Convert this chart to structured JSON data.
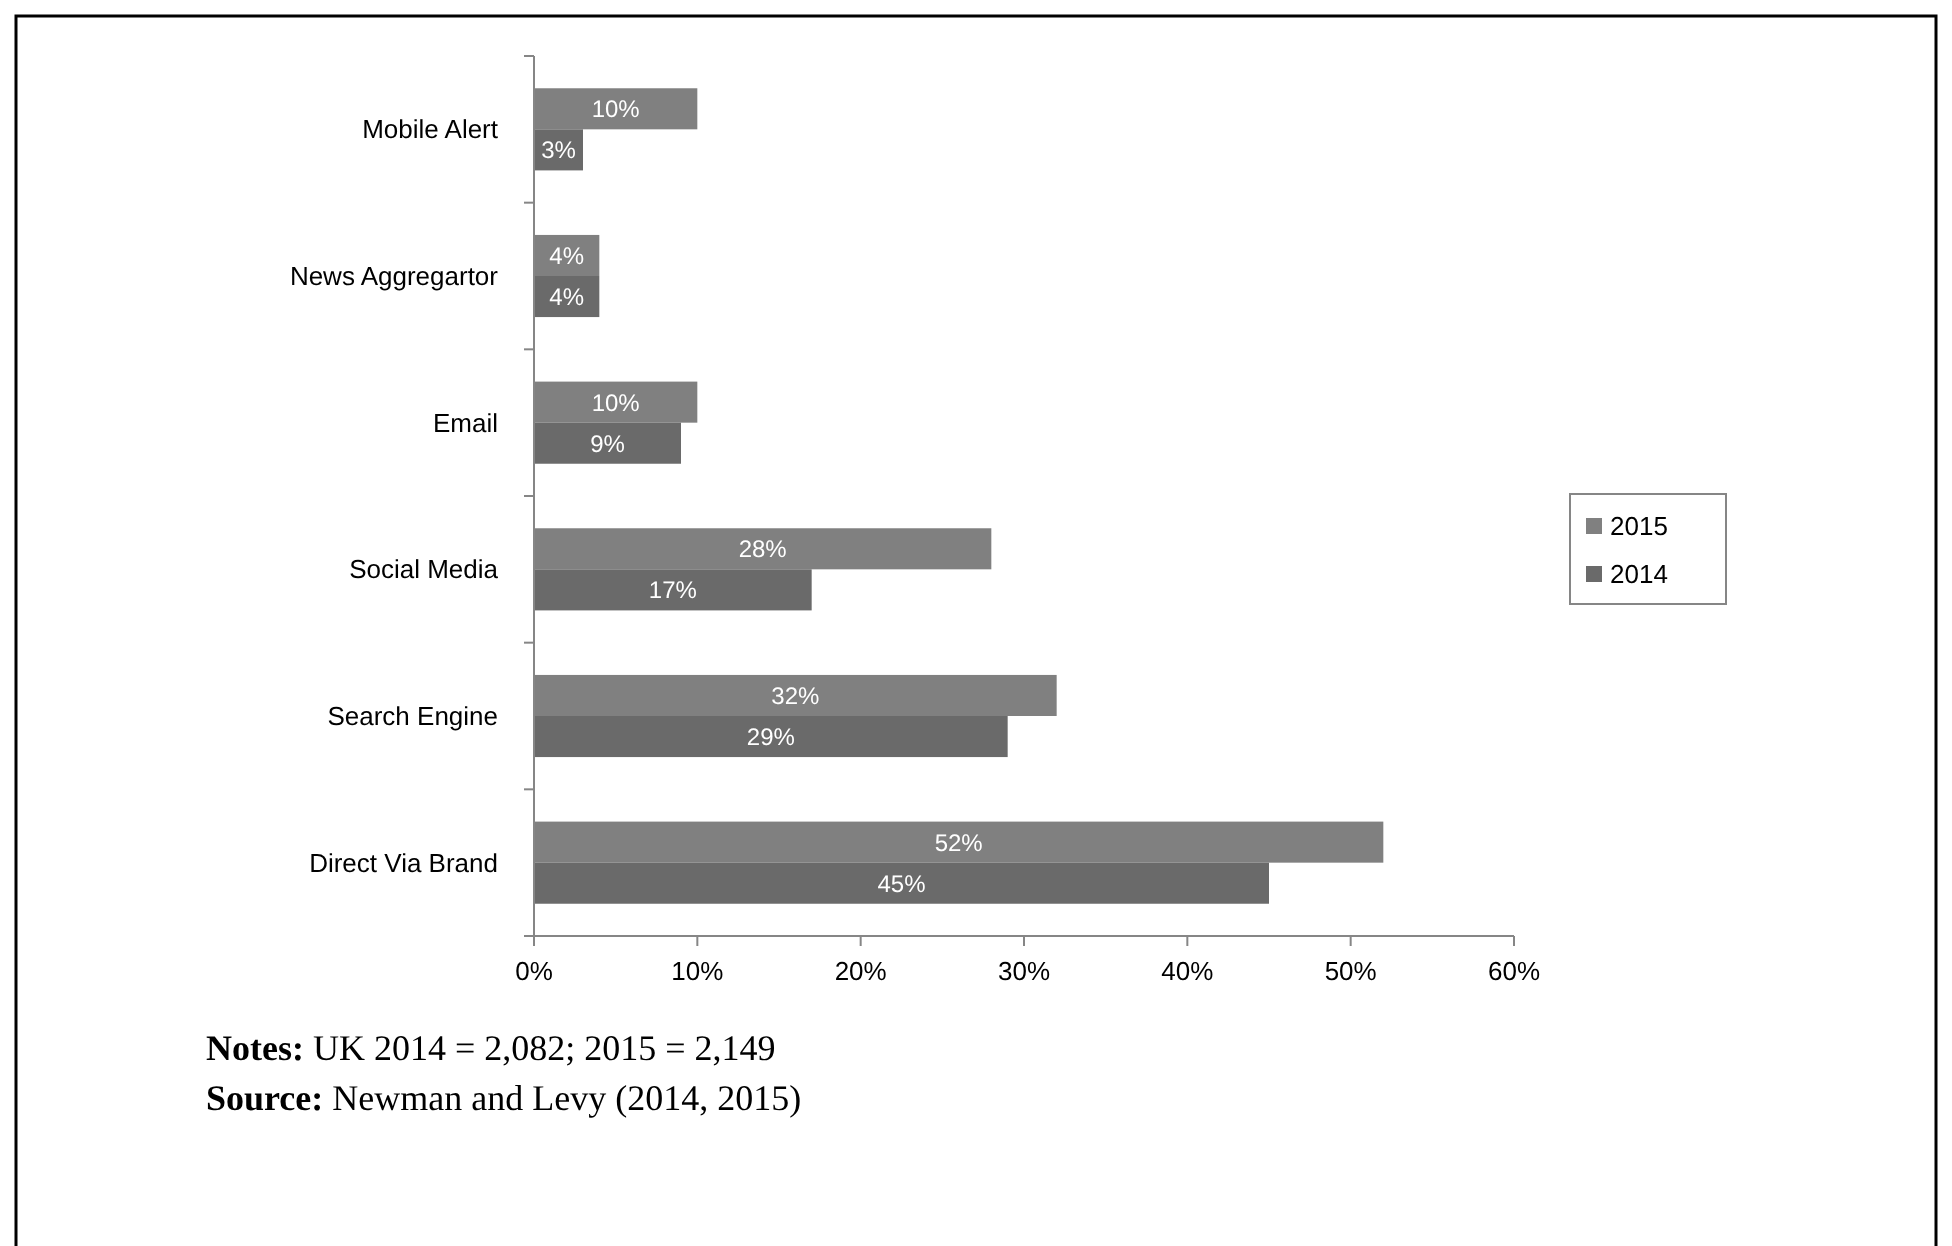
{
  "chart_data": {
    "type": "bar",
    "orientation": "horizontal",
    "categories": [
      "Mobile Alert",
      "News Aggregartor",
      "Email",
      "Social Media",
      "Search Engine",
      "Direct Via Brand"
    ],
    "series": [
      {
        "name": "2015",
        "color": "#808080",
        "values": [
          10,
          4,
          10,
          28,
          32,
          52
        ],
        "value_labels": [
          "10%",
          "4%",
          "10%",
          "28%",
          "32%",
          "52%"
        ]
      },
      {
        "name": "2014",
        "color": "#6a6a6a",
        "values": [
          3,
          4,
          9,
          17,
          29,
          45
        ],
        "value_labels": [
          "3%",
          "4%",
          "9%",
          "17%",
          "29%",
          "45%"
        ]
      }
    ],
    "xlim": [
      0,
      60
    ],
    "xticks": [
      {
        "value": 0,
        "label": "0%"
      },
      {
        "value": 10,
        "label": "10%"
      },
      {
        "value": 20,
        "label": "20%"
      },
      {
        "value": 30,
        "label": "30%"
      },
      {
        "value": 40,
        "label": "40%"
      },
      {
        "value": 50,
        "label": "50%"
      },
      {
        "value": 60,
        "label": "60%"
      }
    ],
    "grid": false,
    "legend": "right",
    "annotations": [
      "Notes: UK 2014 = 2,082; 2015 = 2,149",
      "Source: Newman and Levy (2014, 2015)"
    ]
  }
}
